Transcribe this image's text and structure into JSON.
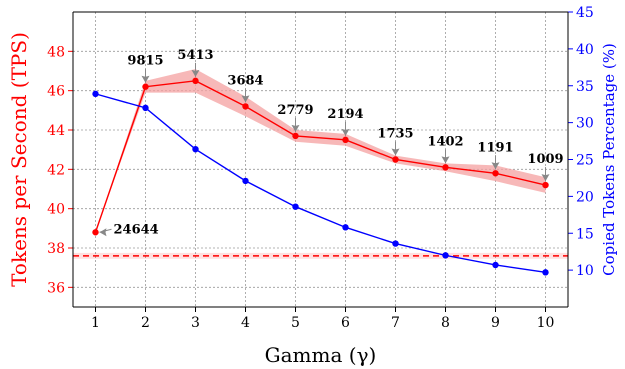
{
  "chart_data": {
    "type": "line",
    "x": [
      1,
      2,
      3,
      4,
      5,
      6,
      7,
      8,
      9,
      10
    ],
    "xlabel": "Gamma (γ)",
    "ylabel_left": "Tokens per Second (TPS)",
    "ylabel_right": "Copied Tokens Percentage (%)",
    "xlim": [
      0.55,
      10.45
    ],
    "ylim_left": [
      35,
      50
    ],
    "ylim_right": [
      5,
      45
    ],
    "xticks": [
      "1",
      "2",
      "3",
      "4",
      "5",
      "6",
      "7",
      "8",
      "9",
      "10"
    ],
    "yticks_left": [
      "36",
      "38",
      "40",
      "42",
      "44",
      "46",
      "48"
    ],
    "yticks_right": [
      "10",
      "15",
      "20",
      "25",
      "30",
      "35",
      "40",
      "45"
    ],
    "grid": true,
    "series": [
      {
        "axis": "left",
        "color": "#ff0000",
        "band_color": "#f4a0a0",
        "values": [
          38.8,
          46.2,
          46.5,
          45.2,
          43.7,
          43.5,
          42.5,
          42.1,
          41.8,
          41.2
        ],
        "band": [
          [
            38.8,
            38.8
          ],
          [
            45.9,
            46.5
          ],
          [
            45.9,
            47.1
          ],
          [
            44.7,
            45.7
          ],
          [
            43.4,
            44.0
          ],
          [
            43.2,
            43.8
          ],
          [
            42.3,
            42.7
          ],
          [
            41.9,
            42.3
          ],
          [
            41.4,
            42.2
          ],
          [
            40.8,
            41.6
          ]
        ],
        "annotations": [
          "24644",
          "9815",
          "5413",
          "3684",
          "2779",
          "2194",
          "1735",
          "1402",
          "1191",
          "1009"
        ]
      },
      {
        "axis": "right",
        "color": "#0000ff",
        "values": [
          33.9,
          32.0,
          26.4,
          22.1,
          18.6,
          15.8,
          13.6,
          12.0,
          10.7,
          9.7
        ]
      }
    ],
    "reference_line": {
      "axis": "left",
      "value": 37.6,
      "color": "#ff0000",
      "band": [
        37.45,
        37.75
      ]
    },
    "colors": {
      "left_axis": "#ff0000",
      "right_axis": "#0000ff",
      "grid": "#9a9a9a"
    }
  }
}
